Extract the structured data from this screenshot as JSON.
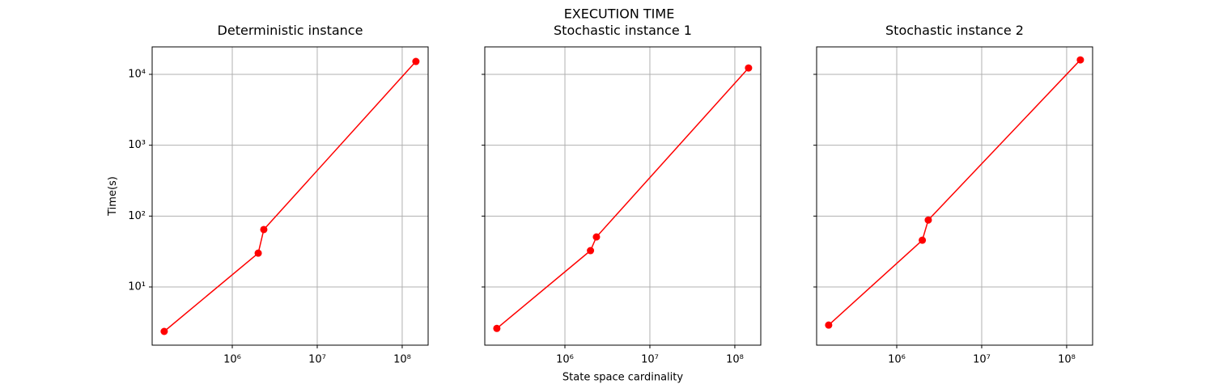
{
  "figure": {
    "title": "EXECUTION TIME"
  },
  "chart_data": [
    {
      "type": "line",
      "title": "Deterministic instance",
      "y_label": "Time(s)",
      "log_x": true,
      "log_y": true,
      "grid": true,
      "color": "#ff0000",
      "x": [
        158000,
        2020000,
        2350000,
        145000000
      ],
      "values": [
        2.36,
        30,
        64.6,
        15200
      ],
      "xlim": [
        114000,
        202000000
      ],
      "ylim": [
        1.51,
        24400
      ],
      "xticks": [
        {
          "value": 1000000,
          "label": "10⁶"
        },
        {
          "value": 10000000,
          "label": "10⁷"
        },
        {
          "value": 100000000,
          "label": "10⁸"
        }
      ],
      "yticks": [
        {
          "value": 10,
          "label": "10¹"
        },
        {
          "value": 100,
          "label": "10²"
        },
        {
          "value": 1000,
          "label": "10³"
        },
        {
          "value": 10000,
          "label": "10⁴"
        }
      ]
    },
    {
      "type": "line",
      "title": "Stochastic instance 1",
      "x_label": "State space cardinality",
      "sharey": true,
      "log_x": true,
      "grid": true,
      "color": "#ff0000",
      "x": [
        158000,
        2000000,
        2350000,
        145000000
      ],
      "values": [
        2.6,
        32.6,
        50.8,
        12300
      ],
      "xlim": [
        114000,
        202000000
      ],
      "xticks": [
        {
          "value": 1000000,
          "label": "10⁶"
        },
        {
          "value": 10000000,
          "label": "10⁷"
        },
        {
          "value": 100000000,
          "label": "10⁸"
        }
      ]
    },
    {
      "type": "line",
      "title": "Stochastic instance 2",
      "sharey": true,
      "log_x": true,
      "grid": true,
      "color": "#ff0000",
      "x": [
        158000,
        2000000,
        2350000,
        145000000
      ],
      "values": [
        2.9,
        45.7,
        88,
        16000
      ],
      "xlim": [
        114000,
        202000000
      ],
      "xticks": [
        {
          "value": 1000000,
          "label": "10⁶"
        },
        {
          "value": 10000000,
          "label": "10⁷"
        },
        {
          "value": 100000000,
          "label": "10⁸"
        }
      ]
    }
  ]
}
